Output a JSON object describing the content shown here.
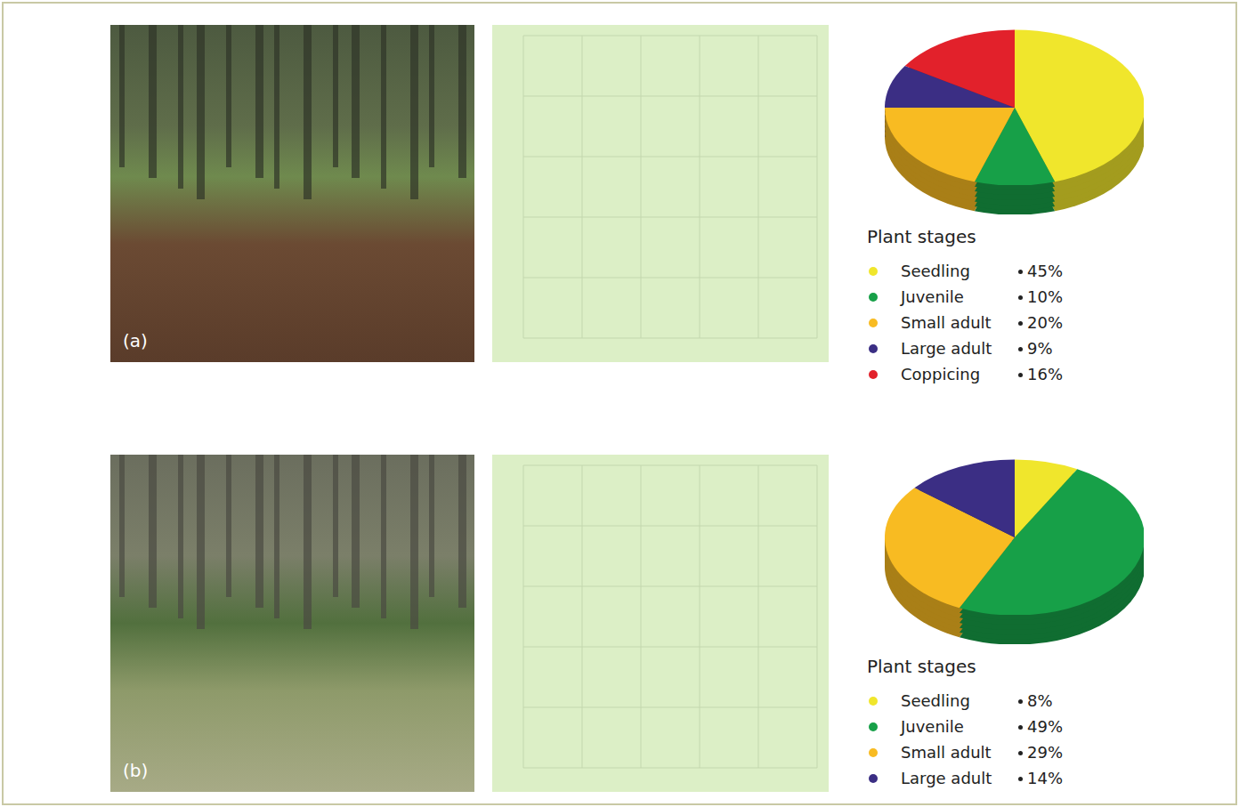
{
  "chart_data": [
    {
      "type": "pie",
      "title": "Plant stages",
      "annotations": [
        "(a)"
      ],
      "categories": [
        "Seedling",
        "Juvenile",
        "Small adult",
        "Large adult",
        "Coppicing"
      ],
      "values": [
        45,
        10,
        20,
        9,
        16
      ],
      "value_labels": [
        "45%",
        "10%",
        "20%",
        "9%",
        "16%"
      ],
      "colors": [
        "#f0e62c",
        "#17a048",
        "#f8bb22",
        "#3b2e84",
        "#e2212b"
      ]
    },
    {
      "type": "pie",
      "title": "Plant stages",
      "annotations": [
        "(b)"
      ],
      "categories": [
        "Seedling",
        "Juvenile",
        "Small adult",
        "Large adult"
      ],
      "values": [
        8,
        49,
        29,
        14
      ],
      "value_labels": [
        "8%",
        "49%",
        "29%",
        "14%"
      ],
      "colors": [
        "#f0e62c",
        "#17a048",
        "#f8bb22",
        "#3b2e84"
      ]
    }
  ]
}
